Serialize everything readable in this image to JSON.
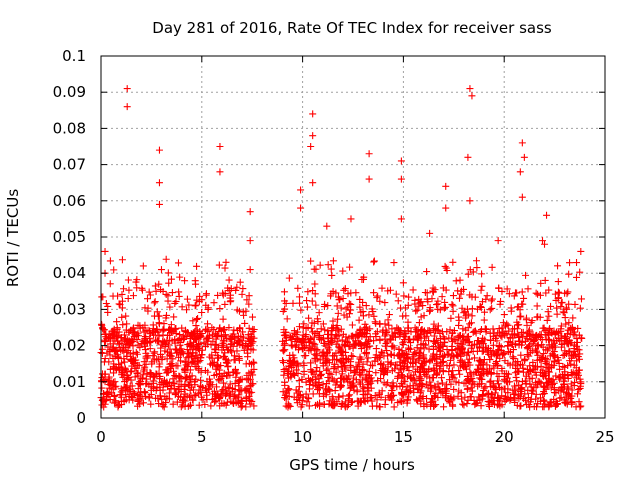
{
  "chart_data": {
    "type": "scatter",
    "title": "Day 281 of 2016, Rate Of TEC Index for receiver sass",
    "xlabel": "GPS time / hours",
    "ylabel": "ROTI / TECUs",
    "xlim": [
      0,
      25
    ],
    "ylim": [
      0,
      0.1
    ],
    "xticks": [
      0,
      5,
      10,
      15,
      20,
      25
    ],
    "xtick_labels": [
      "0",
      "5",
      "10",
      "15",
      "20",
      "25"
    ],
    "yticks": [
      0,
      0.01,
      0.02,
      0.03,
      0.04,
      0.05,
      0.06,
      0.07,
      0.08,
      0.09,
      0.1
    ],
    "ytick_labels": [
      "0",
      "0.01",
      "0.02",
      "0.03",
      "0.04",
      "0.05",
      "0.06",
      "0.07",
      "0.08",
      "0.09",
      "0.1"
    ],
    "grid": true,
    "marker": "+",
    "color": "#ff0000",
    "data_gap_hours": [
      7.6,
      9.0
    ],
    "series": [
      {
        "name": "ROTI",
        "description_of_distribution": "dense band 0.003-0.025 over 0-7.6 h and 9.0-23.8 h",
        "notable_points": [
          {
            "x": 1.3,
            "y": 0.091
          },
          {
            "x": 1.3,
            "y": 0.086
          },
          {
            "x": 2.9,
            "y": 0.074
          },
          {
            "x": 2.9,
            "y": 0.065
          },
          {
            "x": 2.9,
            "y": 0.059
          },
          {
            "x": 5.9,
            "y": 0.075
          },
          {
            "x": 5.9,
            "y": 0.068
          },
          {
            "x": 7.4,
            "y": 0.057
          },
          {
            "x": 7.4,
            "y": 0.049
          },
          {
            "x": 7.4,
            "y": 0.041
          },
          {
            "x": 9.9,
            "y": 0.063
          },
          {
            "x": 9.9,
            "y": 0.058
          },
          {
            "x": 10.5,
            "y": 0.084
          },
          {
            "x": 10.5,
            "y": 0.078
          },
          {
            "x": 10.4,
            "y": 0.075
          },
          {
            "x": 10.5,
            "y": 0.065
          },
          {
            "x": 13.3,
            "y": 0.073
          },
          {
            "x": 13.3,
            "y": 0.066
          },
          {
            "x": 14.9,
            "y": 0.071
          },
          {
            "x": 14.9,
            "y": 0.066
          },
          {
            "x": 14.9,
            "y": 0.055
          },
          {
            "x": 17.1,
            "y": 0.064
          },
          {
            "x": 17.1,
            "y": 0.058
          },
          {
            "x": 18.3,
            "y": 0.091
          },
          {
            "x": 18.4,
            "y": 0.089
          },
          {
            "x": 18.2,
            "y": 0.072
          },
          {
            "x": 18.3,
            "y": 0.06
          },
          {
            "x": 20.9,
            "y": 0.076
          },
          {
            "x": 21.0,
            "y": 0.072
          },
          {
            "x": 20.8,
            "y": 0.068
          },
          {
            "x": 20.9,
            "y": 0.061
          },
          {
            "x": 22.1,
            "y": 0.056
          },
          {
            "x": 22.0,
            "y": 0.048
          },
          {
            "x": 23.8,
            "y": 0.046
          },
          {
            "x": 0.2,
            "y": 0.046
          },
          {
            "x": 0.2,
            "y": 0.04
          },
          {
            "x": 2.1,
            "y": 0.042
          },
          {
            "x": 3.0,
            "y": 0.041
          },
          {
            "x": 6.2,
            "y": 0.043
          },
          {
            "x": 11.2,
            "y": 0.053
          },
          {
            "x": 12.4,
            "y": 0.055
          },
          {
            "x": 16.3,
            "y": 0.051
          },
          {
            "x": 19.7,
            "y": 0.049
          },
          {
            "x": 21.9,
            "y": 0.049
          }
        ]
      }
    ]
  }
}
